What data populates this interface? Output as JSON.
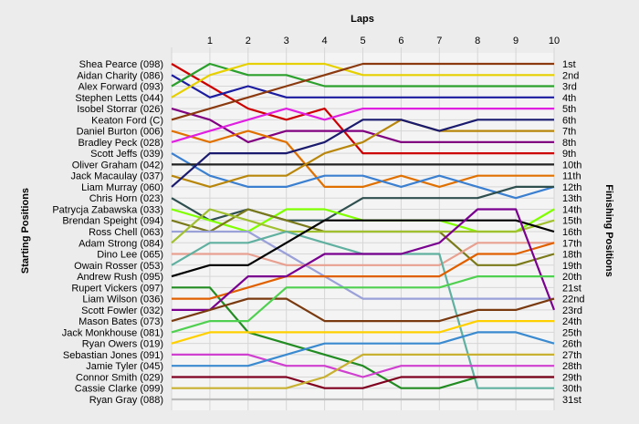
{
  "chart_data": {
    "type": "line",
    "title": "Laps",
    "ylabel_left": "Starting Positions",
    "ylabel_right": "Finishing Positions",
    "x": [
      0,
      1,
      2,
      3,
      4,
      5,
      6,
      7,
      8,
      9,
      10
    ],
    "xticks": [
      "1",
      "2",
      "3",
      "4",
      "5",
      "6",
      "7",
      "8",
      "9",
      "10"
    ],
    "finish_labels": [
      "1st",
      "2nd",
      "3rd",
      "4th",
      "5th",
      "6th",
      "7th",
      "8th",
      "9th",
      "10th",
      "11th",
      "12th",
      "13th",
      "14th",
      "15th",
      "16th",
      "17th",
      "18th",
      "19th",
      "20th",
      "21st",
      "22nd",
      "23rd",
      "24th",
      "25th",
      "26th",
      "27th",
      "28th",
      "29th",
      "30th",
      "31st"
    ],
    "series": [
      {
        "name": "Shea Pearce (098)",
        "color": "#cc0000",
        "values": [
          1,
          3,
          5,
          6,
          5,
          9,
          9,
          9,
          9,
          9,
          9
        ]
      },
      {
        "name": "Aidan Charity (086)",
        "color": "#1c1ca0",
        "values": [
          2,
          4,
          3,
          4,
          4,
          4,
          4,
          4,
          4,
          4,
          4
        ]
      },
      {
        "name": "Alex Forward (093)",
        "color": "#2ca02c",
        "values": [
          3,
          1,
          2,
          2,
          3,
          3,
          3,
          3,
          3,
          3,
          3
        ]
      },
      {
        "name": "Stephen Letts (044)",
        "color": "#e6d000",
        "values": [
          4,
          2,
          1,
          1,
          1,
          2,
          2,
          2,
          2,
          2,
          2
        ]
      },
      {
        "name": "Isobel Storrar (026)",
        "color": "#800080",
        "values": [
          5,
          6,
          8,
          7,
          7,
          7,
          8,
          8,
          8,
          8,
          8
        ]
      },
      {
        "name": "Keaton Ford (C)",
        "color": "#8b3a0f",
        "values": [
          6,
          5,
          4,
          3,
          2,
          1,
          1,
          1,
          1,
          1,
          1
        ]
      },
      {
        "name": "Daniel Burton (006)",
        "color": "#e07000",
        "values": [
          7,
          8,
          7,
          8,
          12,
          12,
          11,
          12,
          11,
          11,
          11
        ]
      },
      {
        "name": "Bradley Peck (028)",
        "color": "#e020e0",
        "values": [
          8,
          7,
          6,
          5,
          6,
          5,
          5,
          5,
          5,
          5,
          5
        ]
      },
      {
        "name": "Scott Jeffs (039)",
        "color": "#3a7fd0",
        "values": [
          9,
          11,
          12,
          12,
          11,
          11,
          12,
          11,
          12,
          13,
          12
        ]
      },
      {
        "name": "Oliver Graham (042)",
        "color": "#222222",
        "values": [
          10,
          10,
          10,
          10,
          10,
          10,
          10,
          10,
          10,
          10,
          10
        ]
      },
      {
        "name": "Jack Macaulay (037)",
        "color": "#b8860b",
        "values": [
          11,
          12,
          11,
          11,
          9,
          8,
          6,
          7,
          7,
          7,
          7
        ]
      },
      {
        "name": "Liam Murray (060)",
        "color": "#1a1a6e",
        "values": [
          12,
          9,
          9,
          9,
          8,
          6,
          6,
          7,
          6,
          6,
          6
        ]
      },
      {
        "name": "Chris Horn (023)",
        "color": "#2f4f4f",
        "values": [
          13,
          15,
          14,
          15,
          15,
          13,
          13,
          13,
          13,
          12,
          12
        ]
      },
      {
        "name": "Patrycja Zabawska (033)",
        "color": "#80ff00",
        "values": [
          14,
          15,
          16,
          14,
          14,
          15,
          15,
          15,
          16,
          16,
          14
        ]
      },
      {
        "name": "Brendan Speight (094)",
        "color": "#7a7a1a",
        "values": [
          15,
          16,
          14,
          15,
          16,
          16,
          16,
          16,
          19,
          19,
          18
        ]
      },
      {
        "name": "Ross Chell (063)",
        "color": "#9aa0d8",
        "values": [
          16,
          16,
          16,
          18,
          20,
          22,
          22,
          22,
          22,
          22,
          22
        ]
      },
      {
        "name": "Adam Strong (084)",
        "color": "#a0c030",
        "values": [
          17,
          14,
          15,
          16,
          16,
          16,
          16,
          16,
          16,
          16,
          15
        ]
      },
      {
        "name": "Dino Lee (065)",
        "color": "#e8a090",
        "values": [
          18,
          18,
          18,
          19,
          19,
          19,
          19,
          19,
          17,
          17,
          17
        ]
      },
      {
        "name": "Owain Rosser (053)",
        "color": "#60b0a0",
        "values": [
          19,
          17,
          17,
          16,
          17,
          18,
          18,
          18,
          30,
          30,
          30
        ]
      },
      {
        "name": "Andrew Rush (095)",
        "color": "#000000",
        "values": [
          20,
          19,
          19,
          17,
          15,
          15,
          15,
          15,
          15,
          15,
          16
        ]
      },
      {
        "name": "Rupert Vickers (097)",
        "color": "#228b22",
        "values": [
          21,
          21,
          25,
          26,
          27,
          28,
          30,
          30,
          29,
          29,
          29
        ]
      },
      {
        "name": "Liam Wilson (036)",
        "color": "#e06000",
        "values": [
          22,
          22,
          21,
          20,
          20,
          20,
          20,
          20,
          18,
          18,
          17
        ]
      },
      {
        "name": "Scott Fowler (032)",
        "color": "#7a0090",
        "values": [
          23,
          23,
          20,
          20,
          18,
          18,
          18,
          17,
          14,
          14,
          23
        ]
      },
      {
        "name": "Mason Bates (073)",
        "color": "#7a3a10",
        "values": [
          24,
          23,
          22,
          22,
          24,
          24,
          24,
          24,
          23,
          23,
          22
        ]
      },
      {
        "name": "Jack Monkhouse (081)",
        "color": "#50d050",
        "values": [
          25,
          24,
          24,
          21,
          21,
          21,
          21,
          21,
          20,
          20,
          20
        ]
      },
      {
        "name": "Ryan Owers (019)",
        "color": "#ffd000",
        "values": [
          26,
          25,
          25,
          25,
          25,
          25,
          25,
          25,
          24,
          24,
          24
        ]
      },
      {
        "name": "Sebastian Jones (091)",
        "color": "#d040d0",
        "values": [
          27,
          27,
          27,
          28,
          28,
          29,
          28,
          28,
          28,
          28,
          28
        ]
      },
      {
        "name": "Jamie Tyler (045)",
        "color": "#3a8ad0",
        "values": [
          28,
          28,
          28,
          27,
          26,
          26,
          26,
          26,
          25,
          25,
          26
        ]
      },
      {
        "name": "Connor Smith (029)",
        "color": "#800020",
        "values": [
          29,
          29,
          29,
          29,
          30,
          30,
          29,
          29,
          29,
          29,
          29
        ]
      },
      {
        "name": "Cassie Clarke (099)",
        "color": "#c8b030",
        "values": [
          30,
          30,
          30,
          30,
          29,
          27,
          27,
          27,
          27,
          27,
          27
        ]
      },
      {
        "name": "Ryan Gray (088)",
        "color": "#bbbbbb",
        "values": [
          31,
          31,
          31,
          31,
          31,
          31,
          31,
          31,
          31,
          31,
          31
        ]
      }
    ]
  }
}
